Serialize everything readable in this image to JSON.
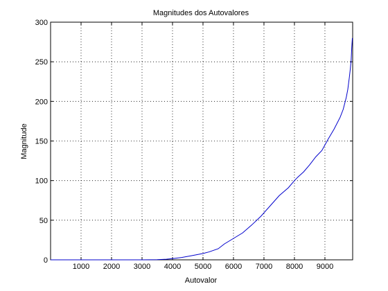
{
  "chart_data": {
    "type": "line",
    "title": "Magnitudes dos Autovalores",
    "xlabel": "Autovalor",
    "ylabel": "Magnitude",
    "xlim": [
      0,
      9910
    ],
    "ylim": [
      0,
      300
    ],
    "xticks": [
      1000,
      2000,
      3000,
      4000,
      5000,
      6000,
      7000,
      8000,
      9000
    ],
    "yticks": [
      0,
      50,
      100,
      150,
      200,
      250,
      300
    ],
    "grid": true,
    "line_color": "#0000cc",
    "series": [
      {
        "name": "Magnitude",
        "x": [
          0,
          500,
          1000,
          1500,
          2000,
          2500,
          3000,
          3500,
          3800,
          4000,
          4300,
          4600,
          5000,
          5200,
          5500,
          5700,
          6000,
          6300,
          6600,
          6900,
          7200,
          7500,
          7800,
          8000,
          8100,
          8300,
          8500,
          8700,
          8900,
          9000,
          9100,
          9300,
          9500,
          9600,
          9700,
          9750,
          9800,
          9830,
          9860,
          9880,
          9900
        ],
        "y": [
          0,
          0,
          0,
          0,
          0,
          0,
          0,
          0.2,
          0.8,
          1.5,
          3,
          5,
          8,
          10,
          14,
          20,
          27,
          34,
          44,
          55,
          68,
          81,
          91,
          100,
          104,
          111,
          120,
          130,
          138,
          145,
          152,
          165,
          180,
          190,
          205,
          215,
          230,
          240,
          252,
          268,
          280
        ]
      }
    ]
  }
}
